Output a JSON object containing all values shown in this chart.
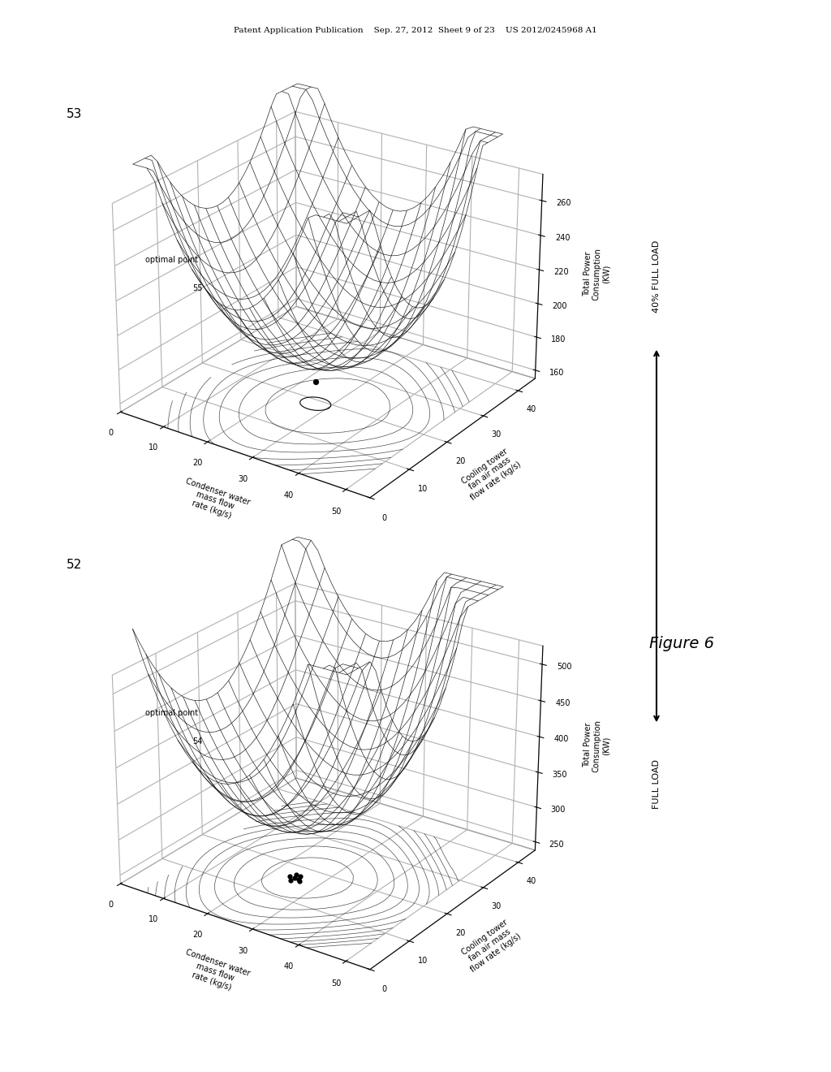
{
  "title_header": "Patent Application Publication    Sep. 27, 2012  Sheet 9 of 23    US 2012/0245968 A1",
  "figure_label": "Figure 6",
  "plot1_label": "53",
  "plot2_label": "52",
  "plot1_z_label": "Total Power\nConsumption\n(KW)",
  "plot2_z_label": "Total Power\nConsumption\n(KW)",
  "x_label": "Condenser water\nmass flow\nrate (kg/s)",
  "y_label": "Cooling tower\nfan air mass\nflow rate (kg/s)",
  "plot1_z_ticks": [
    160,
    180,
    200,
    220,
    240,
    260
  ],
  "plot2_z_ticks": [
    250,
    300,
    350,
    400,
    450,
    500
  ],
  "x_ticks": [
    0,
    10,
    20,
    30,
    40,
    50
  ],
  "y_ticks": [
    0,
    10,
    20,
    30,
    40
  ],
  "plot1_optimal_label": "optimal point",
  "plot1_number": "55",
  "plot2_optimal_label": "optimal point",
  "plot2_number": "54",
  "right_label_top": "40% FULL LOAD",
  "right_label_bottom": "FULL LOAD",
  "background_color": "#ffffff",
  "line_color": "#000000"
}
